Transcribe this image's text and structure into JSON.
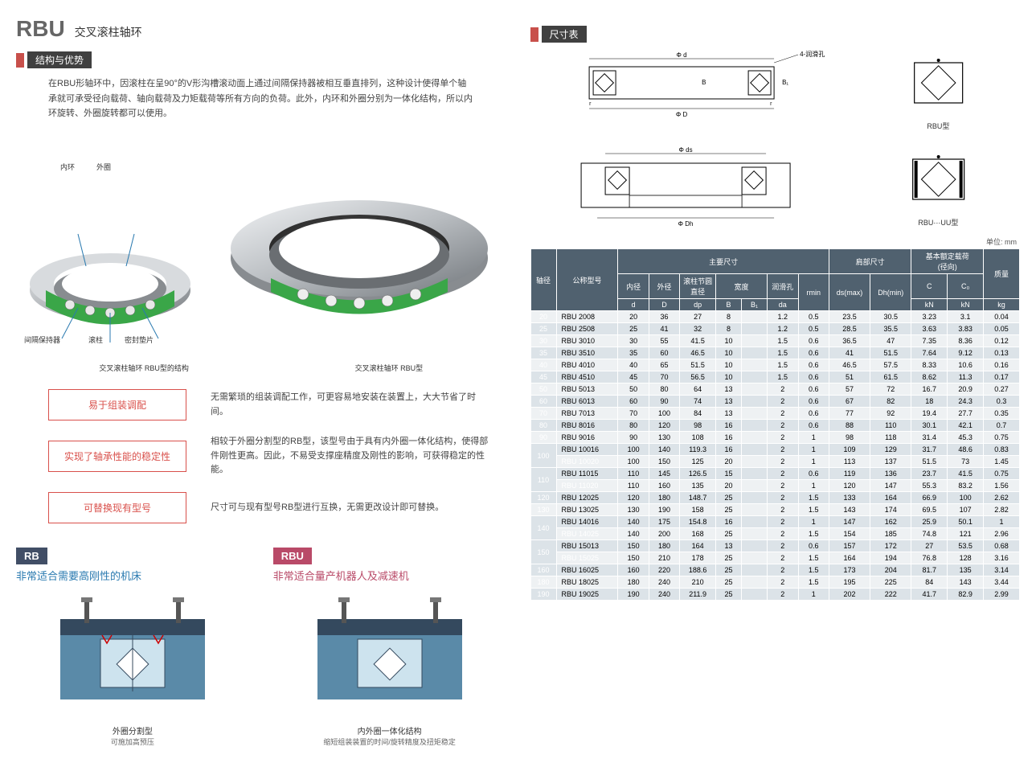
{
  "title": {
    "main": "RBU",
    "sub": "交叉滚柱轴环"
  },
  "sections": {
    "structure": "结构与优势",
    "dimtable": "尺寸表"
  },
  "intro": "在RBU形轴环中，因滚柱在呈90°的V形沟槽滚动面上通过间隔保持器被相互垂直排列，这种设计使得单个轴承就可承受径向载荷、轴向载荷及力矩载荷等所有方向的负荷。此外，内环和外圈分别为一体化结构，所以内环旋转、外圈旋转都可以使用。",
  "labels": {
    "inner": "内环",
    "outer": "外圈",
    "spacer": "间隔保持器",
    "roller": "滚柱",
    "seal": "密封垫片"
  },
  "captions": {
    "left": "交叉滚柱轴环 RBU型的结构",
    "right": "交叉滚柱轴环 RBU型"
  },
  "features": [
    {
      "title": "易于组装调配",
      "desc": "无需繁琐的组装调配工作，可更容易地安装在装置上，大大节省了时间。"
    },
    {
      "title": "实现了轴承性能的稳定性",
      "desc": "相较于外圈分割型的RB型，该型号由于具有内外圈一体化结构，使得部件刚性更高。因此，不易受支撑座精度及刚性的影响，可获得稳定的性能。"
    },
    {
      "title": "可替换现有型号",
      "desc": "尺寸可与现有型号RB型进行互换，无需更改设计即可替换。"
    }
  ],
  "bottom": {
    "rb": {
      "tag": "RB",
      "subtitle": "非常适合需要高刚性的机床",
      "caption": "外圈分割型",
      "subcaption": "可施加高预压"
    },
    "rbu": {
      "tag": "RBU",
      "subtitle": "非常适合量产机器人及减速机",
      "caption": "内外圈一体化结构",
      "subcaption": "缩短组装装置的时间/旋转精度及扭矩稳定"
    }
  },
  "diagrams": {
    "lube": "4-润滑孔",
    "rbu_type": "RBU型",
    "rbu_uu_type": "RBU⋯UU型",
    "dims": {
      "d": "Φ d",
      "D": "Φ D",
      "B": "B",
      "B1": "B₁",
      "ds": "Φ ds",
      "Dh": "Φ Dh",
      "r": "r"
    }
  },
  "unit": "单位: mm",
  "columns": {
    "shaft": "轴径",
    "model": "公称型号",
    "main_group": "主要尺寸",
    "inner_d": "内径",
    "outer_d": "外径",
    "pcd": "滚柱节圆\n直径",
    "width": "宽度",
    "lube": "润滑孔",
    "rmin_h": "",
    "d": "d",
    "D": "D",
    "dp": "dp",
    "B": "B",
    "B1": "B₁",
    "da": "da",
    "rmin": "rmin",
    "shoulder_group": "肩部尺寸",
    "dsmax": "ds(max)",
    "dhmin": "Dh(min)",
    "load_group": "基本额定载荷\n(径向)",
    "C": "C",
    "C0": "C₀",
    "mass": "质量",
    "kN": "kN",
    "kg": "kg"
  },
  "rows": [
    {
      "shaft": "20",
      "model": "RBU 2008",
      "d": "20",
      "D": "36",
      "dp": "27",
      "B": "8",
      "B1": "",
      "da": "1.2",
      "rmin": "0.5",
      "dsmax": "23.5",
      "dhmin": "30.5",
      "C": "3.23",
      "C0": "3.1",
      "kg": "0.04"
    },
    {
      "shaft": "25",
      "model": "RBU 2508",
      "d": "25",
      "D": "41",
      "dp": "32",
      "B": "8",
      "B1": "",
      "da": "1.2",
      "rmin": "0.5",
      "dsmax": "28.5",
      "dhmin": "35.5",
      "C": "3.63",
      "C0": "3.83",
      "kg": "0.05"
    },
    {
      "shaft": "30",
      "model": "RBU 3010",
      "d": "30",
      "D": "55",
      "dp": "41.5",
      "B": "10",
      "B1": "",
      "da": "1.5",
      "rmin": "0.6",
      "dsmax": "36.5",
      "dhmin": "47",
      "C": "7.35",
      "C0": "8.36",
      "kg": "0.12"
    },
    {
      "shaft": "35",
      "model": "RBU 3510",
      "d": "35",
      "D": "60",
      "dp": "46.5",
      "B": "10",
      "B1": "",
      "da": "1.5",
      "rmin": "0.6",
      "dsmax": "41",
      "dhmin": "51.5",
      "C": "7.64",
      "C0": "9.12",
      "kg": "0.13"
    },
    {
      "shaft": "40",
      "model": "RBU 4010",
      "d": "40",
      "D": "65",
      "dp": "51.5",
      "B": "10",
      "B1": "",
      "da": "1.5",
      "rmin": "0.6",
      "dsmax": "46.5",
      "dhmin": "57.5",
      "C": "8.33",
      "C0": "10.6",
      "kg": "0.16"
    },
    {
      "shaft": "45",
      "model": "RBU 4510",
      "d": "45",
      "D": "70",
      "dp": "56.5",
      "B": "10",
      "B1": "",
      "da": "1.5",
      "rmin": "0.6",
      "dsmax": "51",
      "dhmin": "61.5",
      "C": "8.62",
      "C0": "11.3",
      "kg": "0.17"
    },
    {
      "shaft": "50",
      "model": "RBU 5013",
      "d": "50",
      "D": "80",
      "dp": "64",
      "B": "13",
      "B1": "",
      "da": "2",
      "rmin": "0.6",
      "dsmax": "57",
      "dhmin": "72",
      "C": "16.7",
      "C0": "20.9",
      "kg": "0.27"
    },
    {
      "shaft": "60",
      "model": "RBU 6013",
      "d": "60",
      "D": "90",
      "dp": "74",
      "B": "13",
      "B1": "",
      "da": "2",
      "rmin": "0.6",
      "dsmax": "67",
      "dhmin": "82",
      "C": "18",
      "C0": "24.3",
      "kg": "0.3"
    },
    {
      "shaft": "70",
      "model": "RBU 7013",
      "d": "70",
      "D": "100",
      "dp": "84",
      "B": "13",
      "B1": "",
      "da": "2",
      "rmin": "0.6",
      "dsmax": "77",
      "dhmin": "92",
      "C": "19.4",
      "C0": "27.7",
      "kg": "0.35"
    },
    {
      "shaft": "80",
      "model": "RBU 8016",
      "d": "80",
      "D": "120",
      "dp": "98",
      "B": "16",
      "B1": "",
      "da": "2",
      "rmin": "0.6",
      "dsmax": "88",
      "dhmin": "110",
      "C": "30.1",
      "C0": "42.1",
      "kg": "0.7"
    },
    {
      "shaft": "90",
      "model": "RBU 9016",
      "d": "90",
      "D": "130",
      "dp": "108",
      "B": "16",
      "B1": "",
      "da": "2",
      "rmin": "1",
      "dsmax": "98",
      "dhmin": "118",
      "C": "31.4",
      "C0": "45.3",
      "kg": "0.75"
    },
    {
      "shaft": "100",
      "model": "RBU 10016",
      "d": "100",
      "D": "140",
      "dp": "119.3",
      "B": "16",
      "B1": "",
      "da": "2",
      "rmin": "1",
      "dsmax": "109",
      "dhmin": "129",
      "C": "31.7",
      "C0": "48.6",
      "kg": "0.83",
      "span": 2
    },
    {
      "shaft": "",
      "model": "RBU 10020",
      "d": "100",
      "D": "150",
      "dp": "125",
      "B": "20",
      "B1": "",
      "da": "2",
      "rmin": "1",
      "dsmax": "113",
      "dhmin": "137",
      "C": "51.5",
      "C0": "73",
      "kg": "1.45"
    },
    {
      "shaft": "110",
      "model": "RBU 11015",
      "d": "110",
      "D": "145",
      "dp": "126.5",
      "B": "15",
      "B1": "",
      "da": "2",
      "rmin": "0.6",
      "dsmax": "119",
      "dhmin": "136",
      "C": "23.7",
      "C0": "41.5",
      "kg": "0.75",
      "span": 2
    },
    {
      "shaft": "",
      "model": "RBU 11020",
      "d": "110",
      "D": "160",
      "dp": "135",
      "B": "20",
      "B1": "",
      "da": "2",
      "rmin": "1",
      "dsmax": "120",
      "dhmin": "147",
      "C": "55.3",
      "C0": "83.2",
      "kg": "1.56"
    },
    {
      "shaft": "120",
      "model": "RBU 12025",
      "d": "120",
      "D": "180",
      "dp": "148.7",
      "B": "25",
      "B1": "",
      "da": "2",
      "rmin": "1.5",
      "dsmax": "133",
      "dhmin": "164",
      "C": "66.9",
      "C0": "100",
      "kg": "2.62"
    },
    {
      "shaft": "130",
      "model": "RBU 13025",
      "d": "130",
      "D": "190",
      "dp": "158",
      "B": "25",
      "B1": "",
      "da": "2",
      "rmin": "1.5",
      "dsmax": "143",
      "dhmin": "174",
      "C": "69.5",
      "C0": "107",
      "kg": "2.82"
    },
    {
      "shaft": "140",
      "model": "RBU 14016",
      "d": "140",
      "D": "175",
      "dp": "154.8",
      "B": "16",
      "B1": "",
      "da": "2",
      "rmin": "1",
      "dsmax": "147",
      "dhmin": "162",
      "C": "25.9",
      "C0": "50.1",
      "kg": "1",
      "span": 2
    },
    {
      "shaft": "",
      "model": "RBU 14025",
      "d": "140",
      "D": "200",
      "dp": "168",
      "B": "25",
      "B1": "",
      "da": "2",
      "rmin": "1.5",
      "dsmax": "154",
      "dhmin": "185",
      "C": "74.8",
      "C0": "121",
      "kg": "2.96"
    },
    {
      "shaft": "150",
      "model": "RBU 15013",
      "d": "150",
      "D": "180",
      "dp": "164",
      "B": "13",
      "B1": "",
      "da": "2",
      "rmin": "0.6",
      "dsmax": "157",
      "dhmin": "172",
      "C": "27",
      "C0": "53.5",
      "kg": "0.68",
      "span": 2
    },
    {
      "shaft": "",
      "model": "RBU 15025",
      "d": "150",
      "D": "210",
      "dp": "178",
      "B": "25",
      "B1": "",
      "da": "2",
      "rmin": "1.5",
      "dsmax": "164",
      "dhmin": "194",
      "C": "76.8",
      "C0": "128",
      "kg": "3.16"
    },
    {
      "shaft": "160",
      "model": "RBU 16025",
      "d": "160",
      "D": "220",
      "dp": "188.6",
      "B": "25",
      "B1": "",
      "da": "2",
      "rmin": "1.5",
      "dsmax": "173",
      "dhmin": "204",
      "C": "81.7",
      "C0": "135",
      "kg": "3.14"
    },
    {
      "shaft": "180",
      "model": "RBU 18025",
      "d": "180",
      "D": "240",
      "dp": "210",
      "B": "25",
      "B1": "",
      "da": "2",
      "rmin": "1.5",
      "dsmax": "195",
      "dhmin": "225",
      "C": "84",
      "C0": "143",
      "kg": "3.44"
    },
    {
      "shaft": "190",
      "model": "RBU 19025",
      "d": "190",
      "D": "240",
      "dp": "211.9",
      "B": "25",
      "B1": "",
      "da": "2",
      "rmin": "1",
      "dsmax": "202",
      "dhmin": "222",
      "C": "41.7",
      "C0": "82.9",
      "kg": "2.99"
    }
  ],
  "colors": {
    "accent_red": "#c8504b",
    "dark_bar": "#404040",
    "feature_border": "#d9504b",
    "table_header": "#50616f",
    "row_odd": "#eef1f3",
    "row_even": "#dce3e8",
    "rb_tag": "#414e66",
    "rbu_tag": "#b94a68",
    "link_blue": "#2a7ab0",
    "bearing_metal": "#b8bcc0",
    "bearing_metal_dark": "#888c90",
    "roller_green": "#3aa648",
    "mech_blue": "#5a8aa8",
    "mech_dark": "#34495e"
  }
}
